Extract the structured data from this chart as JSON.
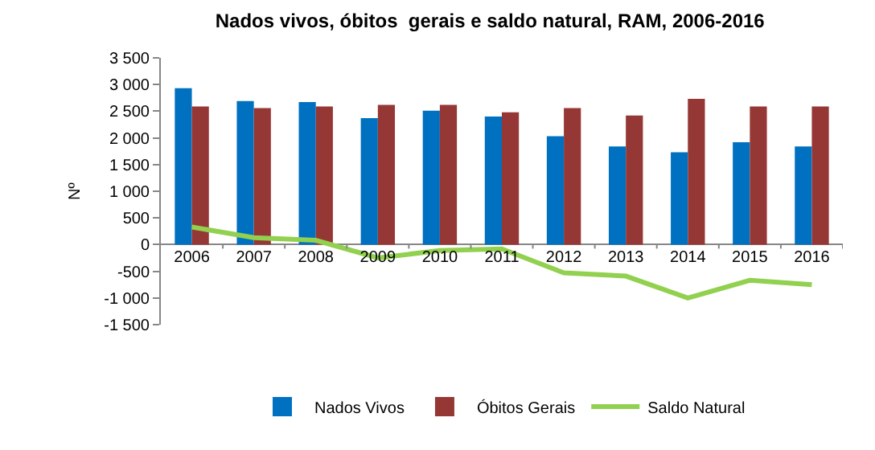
{
  "chart_data": {
    "type": "bar",
    "title": "Nados vivos, óbitos  gerais e saldo natural, RAM, 2006-2016",
    "ylabel": "Nº",
    "categories": [
      "2006",
      "2007",
      "2008",
      "2009",
      "2010",
      "2011",
      "2012",
      "2013",
      "2014",
      "2015",
      "2016"
    ],
    "series": [
      {
        "name": "Nados Vivos",
        "color": "#0070c0",
        "values": [
          2930,
          2690,
          2670,
          2370,
          2510,
          2400,
          2030,
          1840,
          1730,
          1920,
          1840
        ]
      },
      {
        "name": "Óbitos Gerais",
        "color": "#953735",
        "values": [
          2590,
          2560,
          2590,
          2620,
          2620,
          2480,
          2560,
          2420,
          2730,
          2590,
          2590
        ]
      },
      {
        "name": "Saldo Natural",
        "type": "line",
        "color": "#92d050",
        "values": [
          330,
          130,
          80,
          -250,
          -110,
          -80,
          -530,
          -590,
          -1000,
          -670,
          -750
        ]
      }
    ],
    "ylim": [
      -1500,
      3500
    ],
    "yticks": [
      {
        "value": -1500,
        "label": "-1 500"
      },
      {
        "value": -1000,
        "label": "-1 000"
      },
      {
        "value": -500,
        "label": "-500"
      },
      0,
      500,
      {
        "value": 1000,
        "label": "1 000"
      },
      {
        "value": 1500,
        "label": "1 500"
      },
      {
        "value": 2000,
        "label": "2 000"
      },
      {
        "value": 2500,
        "label": "2 500"
      },
      {
        "value": 3000,
        "label": "3 000"
      },
      {
        "value": 3500,
        "label": "3 500"
      }
    ],
    "grid": false,
    "legend": "bottom",
    "marker": "none",
    "line_style": "solid"
  }
}
